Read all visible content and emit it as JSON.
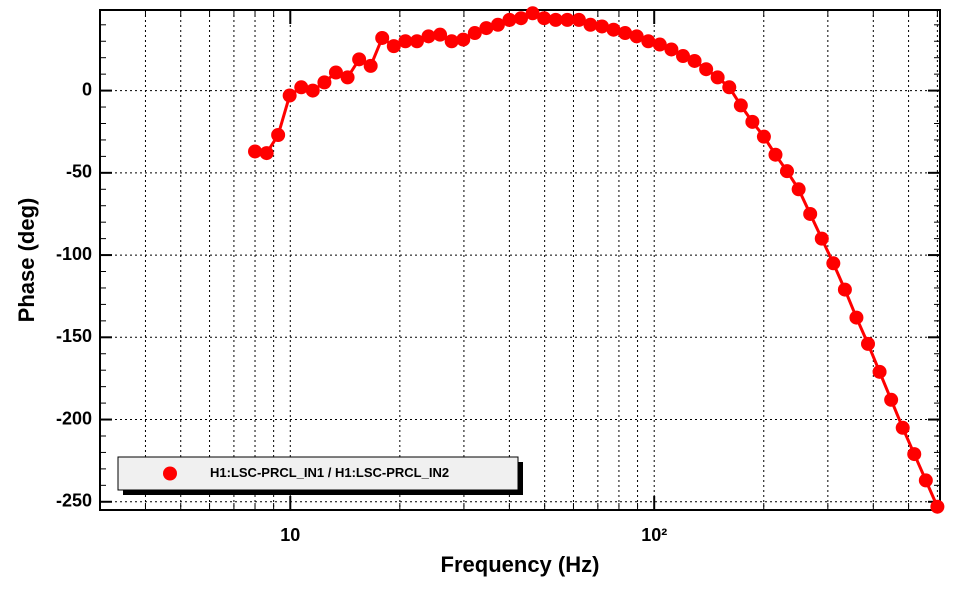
{
  "chart_data": {
    "type": "line",
    "xlabel": "Frequency (Hz)",
    "ylabel": "Phase (deg)",
    "xscale": "log",
    "x": [
      8.0,
      8.61,
      9.26,
      9.96,
      10.72,
      11.53,
      12.41,
      13.35,
      14.37,
      15.46,
      16.63,
      17.89,
      19.25,
      20.72,
      22.29,
      23.98,
      25.8,
      27.76,
      29.87,
      32.14,
      34.57,
      37.2,
      40.02,
      43.06,
      46.34,
      49.84,
      53.63,
      57.71,
      62.09,
      66.8,
      71.87,
      77.32,
      83.2,
      89.52,
      96.32,
      103.6,
      111.5,
      120.0,
      129.1,
      138.9,
      149.4,
      160.8,
      173.0,
      186.1,
      200.2,
      215.4,
      231.7,
      249.4,
      268.3,
      288.7,
      310.6,
      334.2,
      359.5,
      386.8,
      416.2,
      447.8,
      481.8,
      518.3,
      557.7,
      600.0
    ],
    "series": [
      {
        "name": "H1:LSC-PRCL_IN1 / H1:LSC-PRCL_IN2",
        "color": "#ff0000",
        "values": [
          -37,
          -38,
          -27,
          -3,
          2,
          0,
          5,
          11,
          8,
          19,
          15,
          32,
          27,
          30,
          30,
          33,
          34,
          30,
          31,
          35,
          38,
          40,
          43,
          44,
          47,
          44,
          43,
          43,
          43,
          40,
          39,
          37,
          35,
          33,
          30,
          28,
          25,
          21,
          18,
          13,
          8,
          2,
          -9,
          -19,
          -28,
          -39,
          -49,
          -60,
          -75,
          -90,
          -105,
          -121,
          -138,
          -154,
          -171,
          -188,
          -205,
          -221,
          -237,
          -253
        ]
      }
    ],
    "xlim": [
      3,
      610
    ],
    "ylim": [
      -255,
      49
    ],
    "xticks": [
      10,
      {
        "value": 100,
        "label": "10²"
      }
    ],
    "xminor_ticks": [
      4,
      5,
      6,
      7,
      8,
      9,
      20,
      30,
      40,
      50,
      60,
      70,
      80,
      90,
      200,
      300,
      400,
      500,
      600
    ],
    "yticks": [
      0,
      -50,
      -100,
      -150,
      -200,
      -250
    ],
    "grid": true,
    "legend": "lower left"
  }
}
